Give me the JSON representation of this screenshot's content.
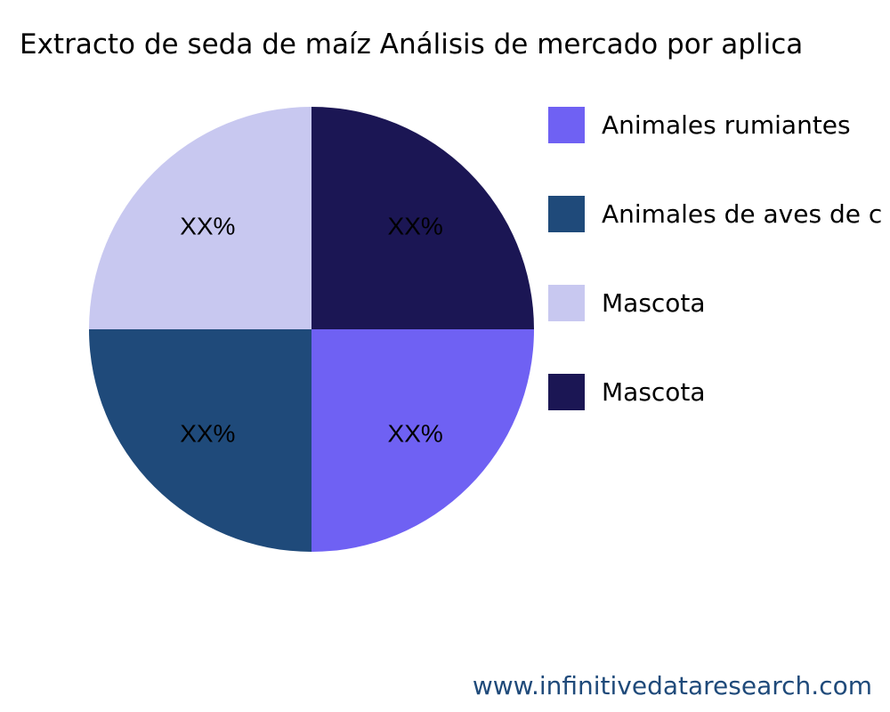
{
  "chart_data": {
    "type": "pie",
    "title": "Extracto de seda de maíz Análisis de mercado por aplica",
    "categories": [
      "Animales rumiantes",
      "Animales de aves de c",
      "Mascota",
      "Mascota"
    ],
    "values": [
      25,
      25,
      25,
      25
    ],
    "data_labels": [
      "XX%",
      "XX%",
      "XX%",
      "XX%"
    ],
    "colors": [
      "#6f61f3",
      "#1f4a7a",
      "#c8c8f0",
      "#1b1654"
    ],
    "legend_position": "right"
  },
  "footer": {
    "url": "www.infinitivedataresearch.com"
  }
}
